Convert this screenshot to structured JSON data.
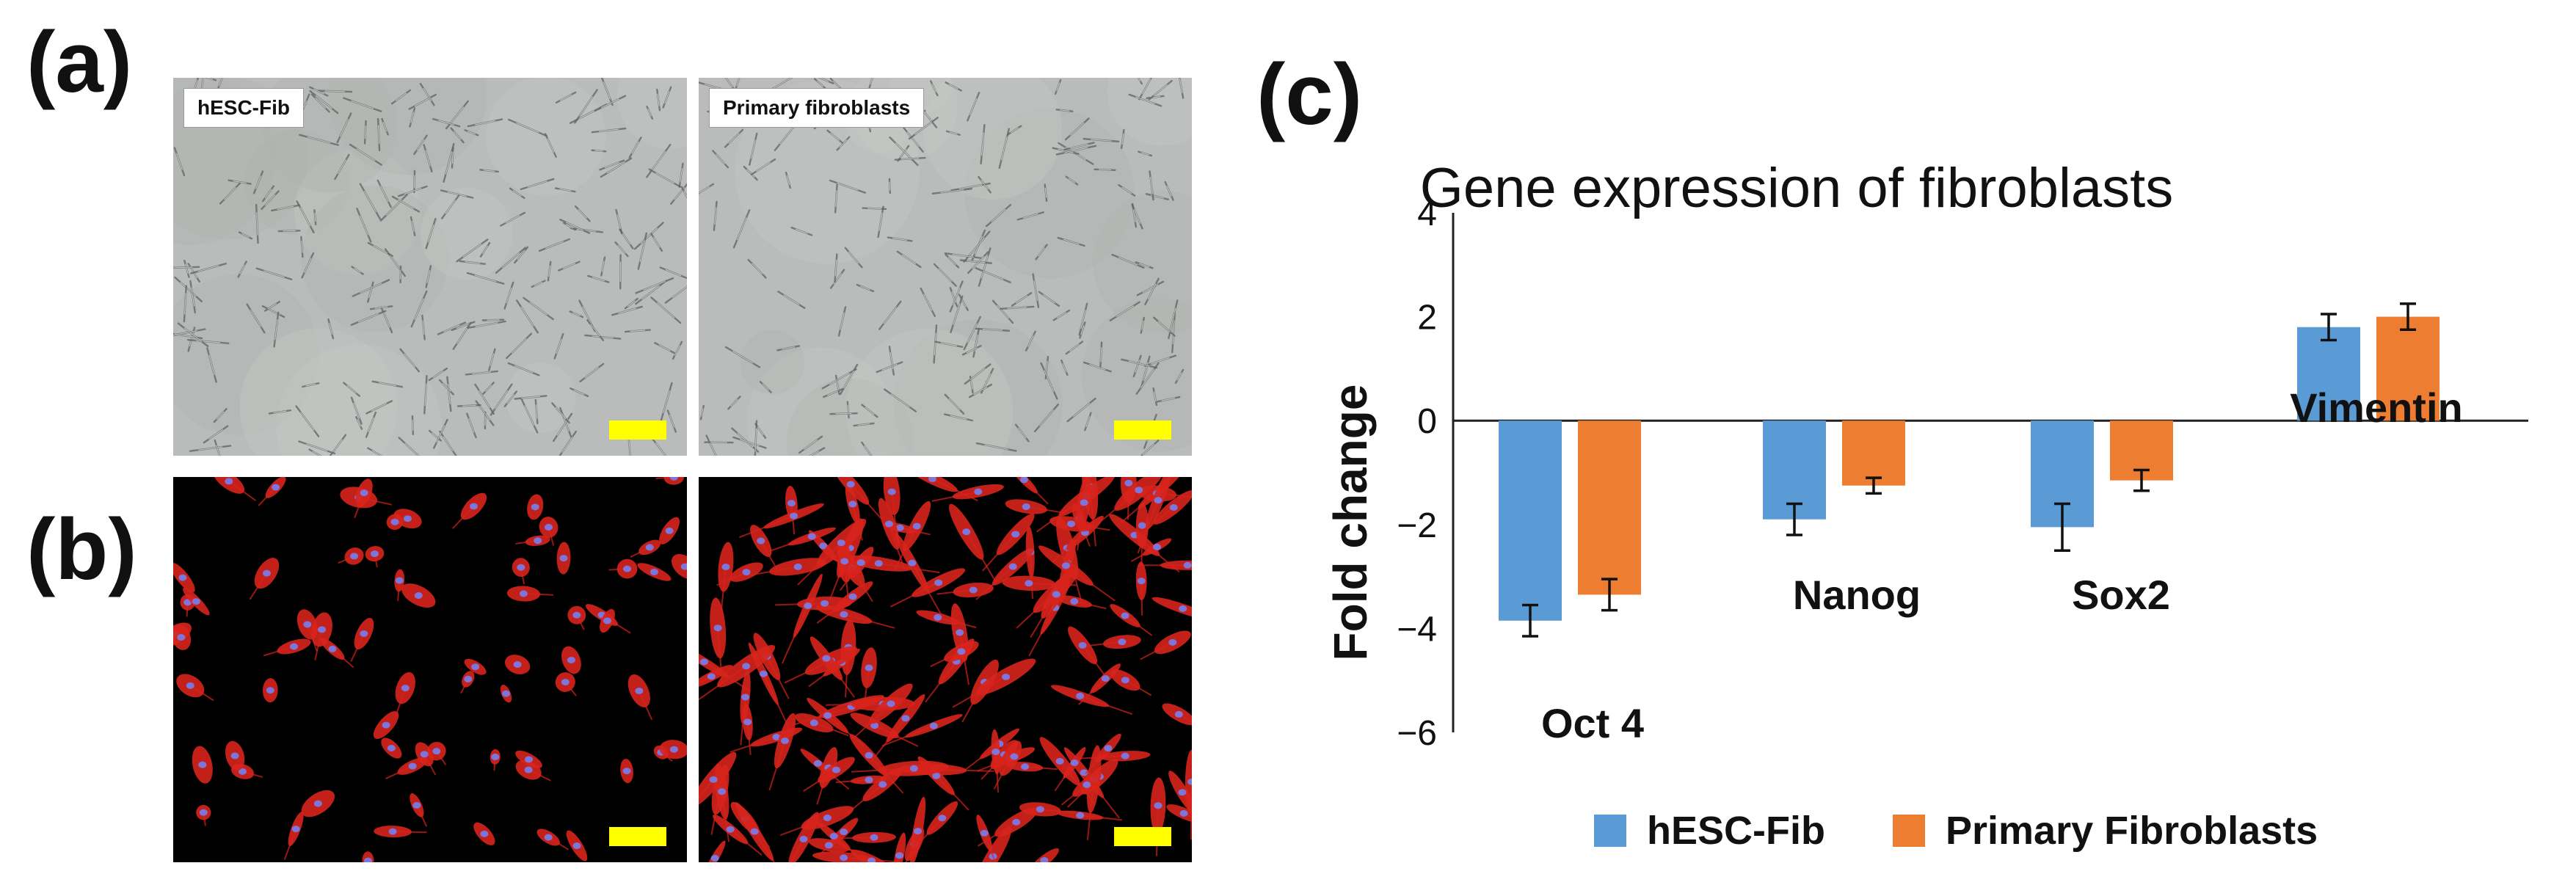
{
  "panels": {
    "a": {
      "letter": "(a)",
      "images": [
        {
          "label": "hESC-Fib"
        },
        {
          "label": "Primary fibroblasts"
        }
      ]
    },
    "b": {
      "letter": "(b)"
    },
    "c": {
      "letter": "(c)"
    }
  },
  "colors": {
    "hesc": "#5b9bd5",
    "primary": "#ed7d31",
    "fluor_red": "#d8231c",
    "fluor_nucleus": "#7a7ae6",
    "scalebar": "#ffff00"
  },
  "chart_data": {
    "type": "bar",
    "title": "Gene expression of fibroblasts",
    "xlabel": "",
    "ylabel": "Fold change",
    "ylim": [
      -6,
      4
    ],
    "yticks": [
      "4",
      "2",
      "0",
      "−2",
      "−4",
      "−6"
    ],
    "categories": [
      "Oct 4",
      "Nanog",
      "Sox2",
      "Vimentin"
    ],
    "series": [
      {
        "name": "hESC-Fib",
        "values": [
          -3.85,
          -1.9,
          -2.05,
          1.8
        ],
        "errors": [
          0.3,
          0.3,
          0.45,
          0.25
        ]
      },
      {
        "name": "Primary Fibroblasts",
        "values": [
          -3.35,
          -1.25,
          -1.15,
          2.0
        ],
        "errors": [
          0.3,
          0.15,
          0.2,
          0.25
        ]
      }
    ],
    "legend": "bottom",
    "grid": false
  }
}
